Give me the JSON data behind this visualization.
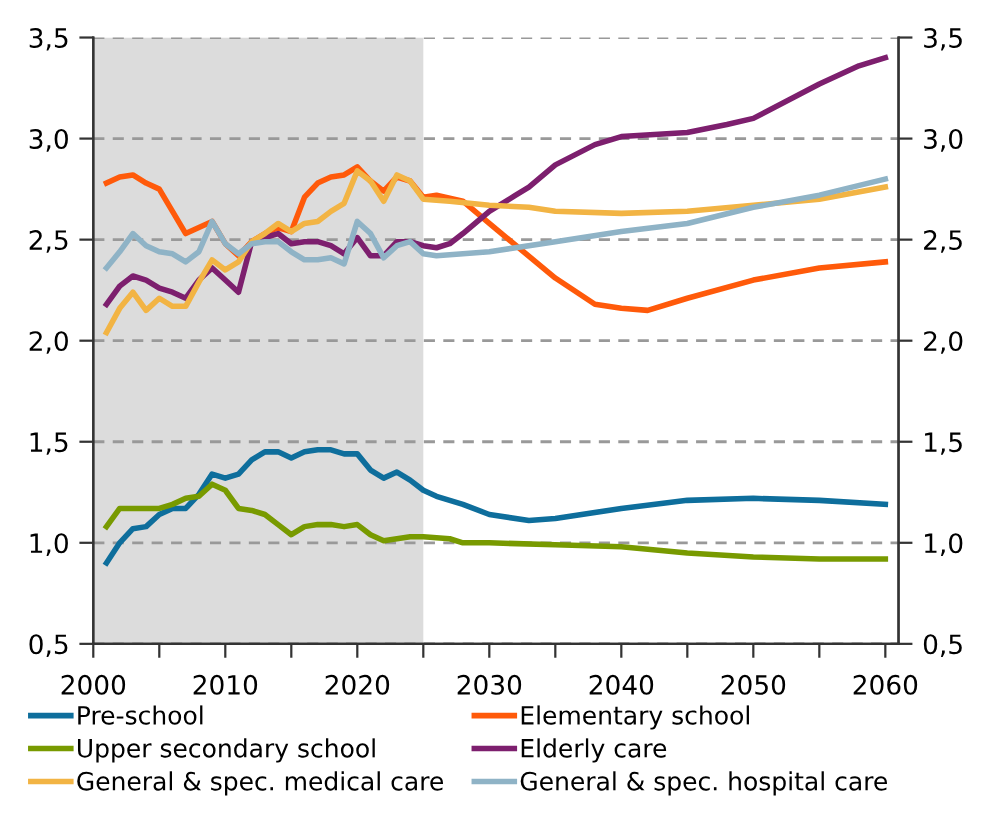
{
  "chart_data": {
    "type": "line",
    "xlim": [
      2000,
      2061
    ],
    "xticks": [
      2000,
      {
        "value": 2005,
        "label": null
      },
      2010,
      {
        "value": 2015,
        "label": null
      },
      2020,
      {
        "value": 2025,
        "label": null
      },
      2030,
      {
        "value": 2035,
        "label": null
      },
      2040,
      {
        "value": 2045,
        "label": null
      },
      2050,
      {
        "value": 2055,
        "label": null
      },
      2060
    ],
    "ylim": [
      0.5,
      3.5
    ],
    "yticks": [
      {
        "value": 0.5,
        "label": "0,5"
      },
      {
        "value": 1.0,
        "label": "1,0"
      },
      {
        "value": 1.5,
        "label": "1,5"
      },
      {
        "value": 2.0,
        "label": "2,0"
      },
      {
        "value": 2.5,
        "label": "2,5"
      },
      {
        "value": 3.0,
        "label": "3,0"
      },
      {
        "value": 3.5,
        "label": "3,5"
      }
    ],
    "y2lim": [
      0.5,
      3.5
    ],
    "y2ticks": [
      {
        "value": 0.5,
        "label": "0,5"
      },
      {
        "value": 1.0,
        "label": "1,0"
      },
      {
        "value": 1.5,
        "label": "1,5"
      },
      {
        "value": 2.0,
        "label": "2,0"
      },
      {
        "value": 2.5,
        "label": "2,5"
      },
      {
        "value": 3.0,
        "label": "3,0"
      },
      {
        "value": 3.5,
        "label": "3,5"
      }
    ],
    "grid": "y",
    "legend": "bottom",
    "line_style": "solid",
    "bands": [
      {
        "axis": "x",
        "from": 2000,
        "to": 2025,
        "label": null,
        "color": "#dcdcdc"
      }
    ],
    "series": [
      {
        "name": "Pre-school",
        "color": "#0e6e9c",
        "x": [
          2001,
          2002,
          2003,
          2004,
          2005,
          2006,
          2007,
          2008,
          2009,
          2010,
          2011,
          2012,
          2013,
          2014,
          2015,
          2016,
          2017,
          2018,
          2019,
          2020,
          2021,
          2022,
          2023,
          2024,
          2025,
          2026,
          2028,
          2030,
          2033,
          2035,
          2040,
          2045,
          2050,
          2055,
          2060
        ],
        "values": [
          0.9,
          1.0,
          1.07,
          1.08,
          1.14,
          1.17,
          1.17,
          1.24,
          1.34,
          1.32,
          1.34,
          1.41,
          1.45,
          1.45,
          1.42,
          1.45,
          1.46,
          1.46,
          1.44,
          1.44,
          1.36,
          1.32,
          1.35,
          1.31,
          1.26,
          1.23,
          1.19,
          1.14,
          1.11,
          1.12,
          1.17,
          1.21,
          1.22,
          1.21,
          1.19
        ]
      },
      {
        "name": "Elementary school",
        "color": "#ff5a0a",
        "x": [
          2001,
          2002,
          2003,
          2004,
          2005,
          2006,
          2007,
          2008,
          2009,
          2010,
          2011,
          2012,
          2013,
          2014,
          2015,
          2016,
          2017,
          2018,
          2019,
          2020,
          2021,
          2022,
          2023,
          2024,
          2025,
          2026,
          2028,
          2030,
          2035,
          2038,
          2040,
          2042,
          2045,
          2050,
          2055,
          2060
        ],
        "values": [
          2.78,
          2.81,
          2.82,
          2.78,
          2.75,
          2.64,
          2.53,
          2.56,
          2.59,
          2.48,
          2.42,
          2.49,
          2.53,
          2.56,
          2.54,
          2.71,
          2.78,
          2.81,
          2.82,
          2.86,
          2.79,
          2.74,
          2.81,
          2.79,
          2.71,
          2.72,
          2.69,
          2.58,
          2.31,
          2.18,
          2.16,
          2.15,
          2.21,
          2.3,
          2.36,
          2.39
        ]
      },
      {
        "name": "Upper secondary school",
        "color": "#789a00",
        "x": [
          2001,
          2002,
          2003,
          2004,
          2005,
          2006,
          2007,
          2008,
          2009,
          2010,
          2011,
          2012,
          2013,
          2014,
          2015,
          2016,
          2017,
          2018,
          2019,
          2020,
          2021,
          2022,
          2023,
          2024,
          2025,
          2027,
          2028,
          2030,
          2035,
          2040,
          2045,
          2050,
          2055,
          2060
        ],
        "values": [
          1.08,
          1.17,
          1.17,
          1.17,
          1.17,
          1.19,
          1.22,
          1.23,
          1.29,
          1.26,
          1.17,
          1.16,
          1.14,
          1.09,
          1.04,
          1.08,
          1.09,
          1.09,
          1.08,
          1.09,
          1.04,
          1.01,
          1.02,
          1.03,
          1.03,
          1.02,
          1.0,
          1.0,
          0.99,
          0.98,
          0.95,
          0.93,
          0.92,
          0.92
        ]
      },
      {
        "name": "Elderly care",
        "color": "#7d1f6e",
        "x": [
          2001,
          2002,
          2003,
          2004,
          2005,
          2006,
          2007,
          2008,
          2009,
          2010,
          2011,
          2012,
          2013,
          2014,
          2015,
          2016,
          2017,
          2018,
          2019,
          2020,
          2021,
          2022,
          2023,
          2024,
          2025,
          2026,
          2027,
          2028,
          2030,
          2032,
          2033,
          2035,
          2038,
          2040,
          2045,
          2048,
          2050,
          2055,
          2058,
          2060
        ],
        "values": [
          2.18,
          2.27,
          2.32,
          2.3,
          2.26,
          2.24,
          2.21,
          2.3,
          2.36,
          2.3,
          2.24,
          2.49,
          2.51,
          2.53,
          2.48,
          2.49,
          2.49,
          2.47,
          2.43,
          2.51,
          2.42,
          2.42,
          2.49,
          2.49,
          2.47,
          2.46,
          2.48,
          2.53,
          2.64,
          2.72,
          2.76,
          2.87,
          2.97,
          3.01,
          3.03,
          3.07,
          3.1,
          3.27,
          3.36,
          3.4
        ]
      },
      {
        "name": "General & spec. medical care",
        "color": "#f2b444",
        "x": [
          2001,
          2002,
          2003,
          2004,
          2005,
          2006,
          2007,
          2008,
          2009,
          2010,
          2011,
          2012,
          2013,
          2014,
          2015,
          2016,
          2017,
          2018,
          2019,
          2020,
          2021,
          2022,
          2023,
          2024,
          2025,
          2027,
          2030,
          2033,
          2035,
          2040,
          2045,
          2050,
          2055,
          2060
        ],
        "values": [
          2.04,
          2.16,
          2.24,
          2.15,
          2.21,
          2.17,
          2.17,
          2.29,
          2.4,
          2.35,
          2.39,
          2.49,
          2.53,
          2.58,
          2.54,
          2.58,
          2.59,
          2.64,
          2.68,
          2.84,
          2.79,
          2.69,
          2.82,
          2.79,
          2.7,
          2.69,
          2.67,
          2.66,
          2.64,
          2.63,
          2.64,
          2.67,
          2.7,
          2.76
        ]
      },
      {
        "name": "General & spec. hospital care",
        "color": "#8fb3c6",
        "x": [
          2001,
          2002,
          2003,
          2004,
          2005,
          2006,
          2007,
          2008,
          2009,
          2010,
          2011,
          2012,
          2013,
          2014,
          2015,
          2016,
          2017,
          2018,
          2019,
          2020,
          2021,
          2022,
          2023,
          2024,
          2025,
          2026,
          2030,
          2035,
          2040,
          2045,
          2050,
          2055,
          2060
        ],
        "values": [
          2.36,
          2.44,
          2.53,
          2.47,
          2.44,
          2.43,
          2.39,
          2.44,
          2.59,
          2.48,
          2.43,
          2.48,
          2.49,
          2.49,
          2.44,
          2.4,
          2.4,
          2.41,
          2.38,
          2.59,
          2.53,
          2.41,
          2.47,
          2.49,
          2.43,
          2.42,
          2.44,
          2.49,
          2.54,
          2.58,
          2.66,
          2.72,
          2.8
        ]
      }
    ]
  }
}
